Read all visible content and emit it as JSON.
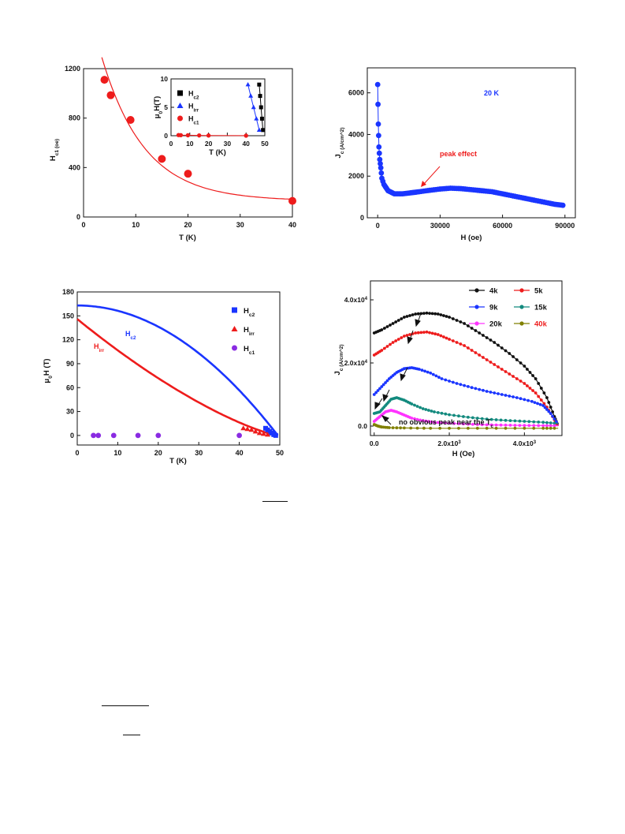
{
  "chart_data": [
    {
      "type": "scatter",
      "xlabel": "T (K)",
      "ylabel": "H_c1 (oe)",
      "xlim": [
        0,
        40
      ],
      "ylim": [
        0,
        1200
      ],
      "xticks": [
        "0",
        "10",
        "20",
        "30",
        "40"
      ],
      "yticks": [
        "0",
        "400",
        "800",
        "1200"
      ],
      "series": [
        {
          "x": [
            4,
            5.2,
            9,
            15,
            20,
            40
          ],
          "y": [
            1110,
            985,
            785,
            470,
            350,
            130
          ],
          "color": "#ee1c1c"
        }
      ],
      "fit": {
        "color": "#ee1c1c"
      },
      "inset": {
        "xlabel": "T (K)",
        "ylabel": "μ0H(T)",
        "xlim": [
          0,
          50
        ],
        "ylim": [
          0,
          10
        ],
        "xticks": [
          "0",
          "10",
          "20",
          "30",
          "40",
          "50"
        ],
        "yticks": [
          "0",
          "5",
          "10"
        ],
        "legend": [
          "Hc2",
          "Hirr",
          "Hc1"
        ],
        "series": [
          {
            "name": "Hc2",
            "color": "#000000",
            "x": [
              47,
              47.5,
              48,
              48.5,
              49
            ],
            "y": [
              9,
              7,
              5,
              3,
              1
            ]
          },
          {
            "name": "Hirr",
            "color": "#1a35ff",
            "x": [
              41,
              42.5,
              44,
              45.5,
              47
            ],
            "y": [
              9,
              7,
              5,
              3,
              1
            ]
          },
          {
            "name": "Hc1",
            "color": "#ee1c1c",
            "x": [
              4,
              5.2,
              9,
              15,
              20,
              40
            ],
            "y": [
              0.11,
              0.1,
              0.08,
              0.05,
              0.035,
              0.013
            ]
          }
        ],
        "legend_placement": "top-left"
      }
    },
    {
      "type": "line",
      "xlabel": "H (oe)",
      "ylabel": "J_c (A/cm^2)",
      "xlim": [
        -5000,
        95000
      ],
      "ylim": [
        0,
        7200
      ],
      "xticks": [
        "0",
        "30000",
        "60000",
        "90000"
      ],
      "yticks": [
        "0",
        "2000",
        "4000",
        "6000"
      ],
      "annotation": "20 K",
      "arrow_label": "peak effect",
      "series": [
        {
          "color": "#1a35ff",
          "x": [
            0,
            300,
            600,
            1000,
            1500,
            2000,
            3000,
            5000,
            8000,
            12000,
            16000,
            20000,
            25000,
            30000,
            35000,
            40000,
            45000,
            50000,
            55000,
            60000,
            65000,
            70000,
            75000,
            80000,
            85000,
            89000
          ],
          "y": [
            6400,
            4500,
            3400,
            2800,
            2400,
            1900,
            1600,
            1300,
            1150,
            1150,
            1200,
            1250,
            1320,
            1380,
            1420,
            1400,
            1350,
            1300,
            1250,
            1150,
            1050,
            950,
            850,
            750,
            650,
            600
          ]
        }
      ]
    },
    {
      "type": "line",
      "xlabel": "T (K)",
      "ylabel": "μ0H (T)",
      "xlim": [
        0,
        50
      ],
      "ylim": [
        -12,
        180
      ],
      "xticks": [
        "0",
        "10",
        "20",
        "30",
        "40",
        "50"
      ],
      "yticks": [
        "0",
        "30",
        "60",
        "90",
        "120",
        "150",
        "180"
      ],
      "curve_labels": [
        "Hc2",
        "Hirr"
      ],
      "legend": [
        "Hc2",
        "Hirr",
        "Hc1"
      ],
      "legend_placement": "top-right",
      "series": [
        {
          "name": "Hc2",
          "color": "#1a35ff",
          "curve": {
            "y0": 163,
            "tc": 49.5,
            "exponent": 2
          },
          "points_x": [
            46.5,
            47,
            47.5,
            48,
            48.5,
            49
          ],
          "points_y": [
            9,
            7,
            5,
            3,
            1,
            0
          ]
        },
        {
          "name": "Hirr",
          "color": "#ee1c1c",
          "curve": {
            "y0": 146,
            "tc": 49.5,
            "exponent": 1.7
          },
          "points_x": [
            41,
            42,
            43,
            44,
            45,
            46,
            47
          ],
          "points_y": [
            9,
            8,
            7,
            5,
            3,
            2,
            1
          ]
        },
        {
          "name": "Hc1",
          "color": "#8a2be2",
          "points_x": [
            4,
            5.2,
            9,
            15,
            20,
            40
          ],
          "points_y": [
            0,
            0,
            0,
            0,
            0,
            0
          ]
        }
      ]
    },
    {
      "type": "line",
      "xlabel": "H (Oe)",
      "ylabel": "J_c (A/cm^2)",
      "xlim": [
        -100,
        5000
      ],
      "ylim": [
        -3000,
        46000
      ],
      "xticks": [
        "0.0",
        "2.0x10^3",
        "4.0x10^3"
      ],
      "yticks": [
        "0.0",
        "2.0x10^4",
        "4.0x10^4"
      ],
      "annotation": "no obvious peak near the T_c",
      "legend_placement": "top-right",
      "series": [
        {
          "name": "4k",
          "color": "#111111",
          "x": [
            0,
            200,
            500,
            800,
            1100,
            1400,
            1700,
            2000,
            2400,
            2800,
            3200,
            3600,
            4000,
            4300,
            4600,
            4800,
            4900
          ],
          "y": [
            29500,
            30500,
            32500,
            34500,
            35500,
            35800,
            35500,
            34500,
            32500,
            29500,
            26500,
            23000,
            19000,
            15000,
            9000,
            3000,
            0
          ]
        },
        {
          "name": "5k",
          "color": "#ee1c1c",
          "x": [
            0,
            200,
            500,
            800,
            1100,
            1400,
            1700,
            2000,
            2400,
            2800,
            3200,
            3600,
            4000,
            4300,
            4600,
            4800,
            4900
          ],
          "y": [
            22500,
            24000,
            26500,
            28500,
            29500,
            29800,
            29000,
            27500,
            25500,
            22500,
            19500,
            16500,
            13500,
            10500,
            6000,
            2000,
            0
          ]
        },
        {
          "name": "9k",
          "color": "#1a35ff",
          "x": [
            0,
            200,
            400,
            600,
            800,
            1000,
            1200,
            1500,
            1800,
            2200,
            2600,
            3000,
            3400,
            3800,
            4200,
            4500,
            4700,
            4900
          ],
          "y": [
            10000,
            12500,
            15000,
            17000,
            18200,
            18500,
            18000,
            16800,
            15000,
            13500,
            12200,
            11000,
            10000,
            9000,
            7800,
            6500,
            4000,
            500
          ]
        },
        {
          "name": "15k",
          "color": "#138a7e",
          "x": [
            0,
            150,
            300,
            450,
            600,
            800,
            1000,
            1300,
            1600,
            2000,
            2500,
            3000,
            3500,
            4000,
            4500,
            4900
          ],
          "y": [
            4000,
            4500,
            6500,
            8500,
            9000,
            8200,
            7000,
            5500,
            4500,
            3600,
            2800,
            2200,
            1800,
            1500,
            1200,
            800
          ]
        },
        {
          "name": "20k",
          "color": "#ff33ff",
          "x": [
            0,
            150,
            300,
            450,
            600,
            800,
            1000,
            1300,
            1600,
            2000,
            2500,
            3000,
            3500,
            4000,
            4500,
            4900
          ],
          "y": [
            1500,
            3000,
            4500,
            5000,
            4500,
            3500,
            2500,
            1700,
            1200,
            900,
            600,
            400,
            300,
            200,
            150,
            100
          ]
        },
        {
          "name": "40k",
          "color": "#808000",
          "x": [
            0,
            100,
            200,
            400,
            800,
            1500,
            2500,
            3500,
            4500,
            4900
          ],
          "y": [
            500,
            0,
            -300,
            -500,
            -600,
            -700,
            -700,
            -700,
            -700,
            -700
          ]
        }
      ]
    }
  ]
}
